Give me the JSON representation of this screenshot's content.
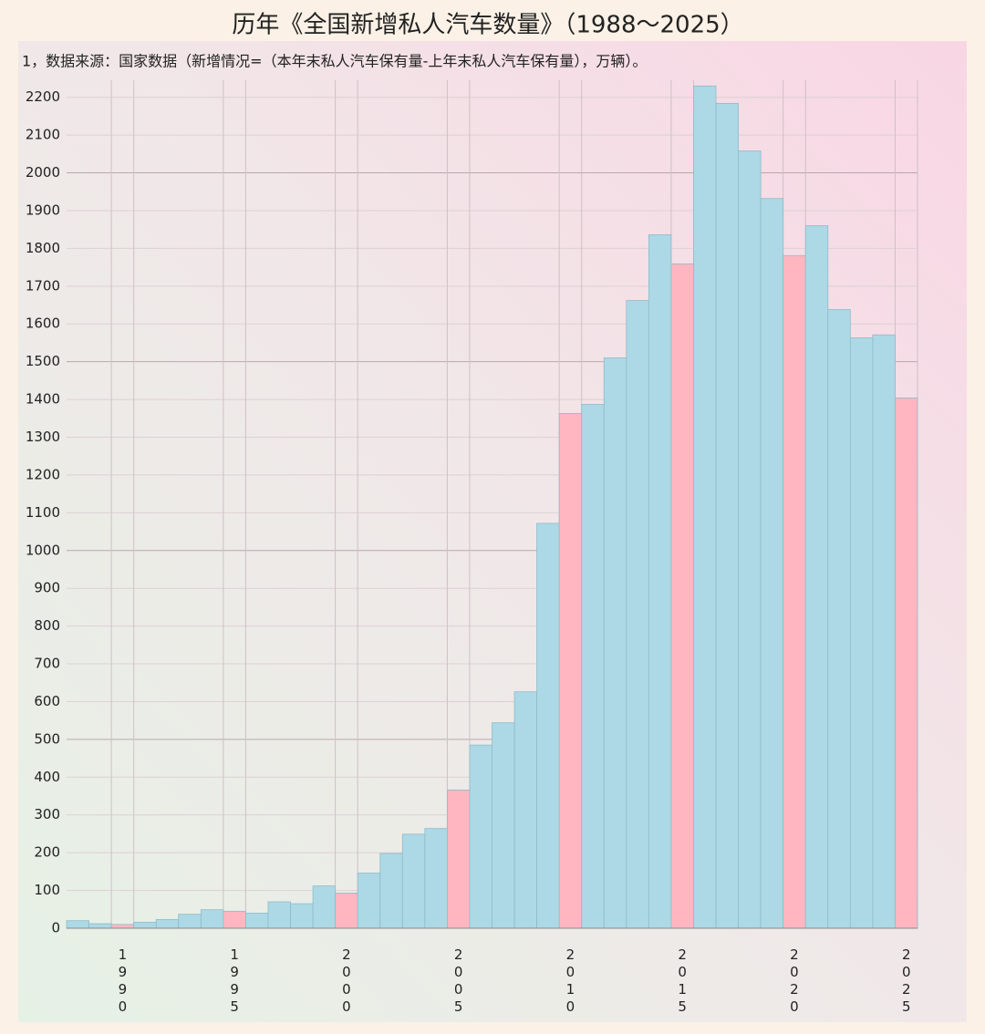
{
  "chart_data": {
    "type": "bar",
    "title": "历年《全国新增私人汽车数量》（1988～2025）",
    "subtitle": "1，数据来源：国家数据（新增情况=（本年末私人汽车保有量-上年末私人汽车保有量），万辆）。",
    "categories": [
      null,
      null,
      "1990",
      null,
      null,
      null,
      null,
      "1995",
      null,
      null,
      null,
      null,
      "2000",
      null,
      null,
      null,
      null,
      "2005",
      null,
      null,
      null,
      null,
      "2010",
      null,
      null,
      null,
      null,
      "2015",
      null,
      null,
      null,
      null,
      "2020",
      null,
      null,
      null,
      null,
      "2025"
    ],
    "values": [
      20,
      12,
      10,
      16,
      23,
      37,
      49,
      45,
      40,
      70,
      65,
      112,
      93,
      146,
      198,
      249,
      264,
      366,
      485,
      544,
      626,
      1072,
      1363,
      1387,
      1510,
      1662,
      1836,
      1759,
      2230,
      2184,
      2058,
      1932,
      1781,
      1860,
      1638,
      1563,
      1571,
      1404
    ],
    "colors": [
      "#add8e6",
      "#add8e6",
      "#ffb6c1",
      "#add8e6",
      "#add8e6",
      "#add8e6",
      "#add8e6",
      "#ffb6c1",
      "#add8e6",
      "#add8e6",
      "#add8e6",
      "#add8e6",
      "#ffb6c1",
      "#add8e6",
      "#add8e6",
      "#add8e6",
      "#add8e6",
      "#ffb6c1",
      "#add8e6",
      "#add8e6",
      "#add8e6",
      "#add8e6",
      "#ffb6c1",
      "#add8e6",
      "#add8e6",
      "#add8e6",
      "#add8e6",
      "#ffb6c1",
      "#add8e6",
      "#add8e6",
      "#add8e6",
      "#add8e6",
      "#ffb6c1",
      "#add8e6",
      "#add8e6",
      "#add8e6",
      "#add8e6",
      "#ffb6c1"
    ],
    "ylim": [
      0,
      2250
    ],
    "yticks": [
      0,
      100,
      200,
      300,
      400,
      500,
      600,
      700,
      800,
      900,
      1000,
      1100,
      1200,
      1300,
      1400,
      1500,
      1600,
      1700,
      1800,
      1900,
      2000,
      2100,
      2200
    ],
    "grid": true
  }
}
